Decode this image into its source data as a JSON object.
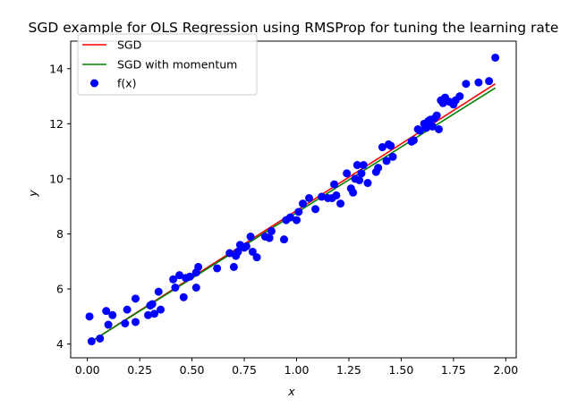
{
  "chart_data": {
    "type": "scatter",
    "title": "SGD example for OLS Regression using RMSProp for tuning the learning rate",
    "xlabel": "x",
    "ylabel": "y",
    "xlim": [
      -0.08,
      2.05
    ],
    "ylim": [
      3.5,
      15.0
    ],
    "xticks": [
      "0.00",
      "0.25",
      "0.50",
      "0.75",
      "1.00",
      "1.25",
      "1.50",
      "1.75",
      "2.00"
    ],
    "yticks": [
      "4",
      "6",
      "8",
      "10",
      "12",
      "14"
    ],
    "legend_position": "upper-left",
    "series": [
      {
        "name": "SGD",
        "kind": "line",
        "color": "#ff0000",
        "x": [
          0.02,
          1.95
        ],
        "y": [
          4.1,
          13.45
        ]
      },
      {
        "name": "SGD with momentum",
        "kind": "line",
        "color": "#008000",
        "x": [
          0.02,
          1.95
        ],
        "y": [
          4.1,
          13.3
        ]
      },
      {
        "name": "f(x)",
        "kind": "scatter",
        "color": "#0000ff",
        "x": [
          0.01,
          0.02,
          0.06,
          0.09,
          0.1,
          0.12,
          0.18,
          0.19,
          0.23,
          0.23,
          0.29,
          0.3,
          0.31,
          0.32,
          0.34,
          0.35,
          0.41,
          0.42,
          0.44,
          0.46,
          0.47,
          0.49,
          0.52,
          0.52,
          0.53,
          0.62,
          0.68,
          0.7,
          0.71,
          0.72,
          0.73,
          0.75,
          0.76,
          0.78,
          0.79,
          0.81,
          0.85,
          0.87,
          0.88,
          0.94,
          0.95,
          0.97,
          1.0,
          1.01,
          1.03,
          1.06,
          1.09,
          1.12,
          1.15,
          1.17,
          1.18,
          1.19,
          1.21,
          1.24,
          1.26,
          1.27,
          1.28,
          1.29,
          1.3,
          1.31,
          1.32,
          1.34,
          1.38,
          1.39,
          1.41,
          1.43,
          1.44,
          1.45,
          1.46,
          1.55,
          1.56,
          1.58,
          1.59,
          1.61,
          1.62,
          1.63,
          1.64,
          1.65,
          1.66,
          1.67,
          1.68,
          1.69,
          1.7,
          1.71,
          1.73,
          1.75,
          1.76,
          1.78,
          1.81,
          1.87,
          1.92,
          1.95
        ],
        "y": [
          5.0,
          4.1,
          4.2,
          5.2,
          4.7,
          5.05,
          4.75,
          5.25,
          4.8,
          5.65,
          5.05,
          5.4,
          5.45,
          5.1,
          5.9,
          5.25,
          6.35,
          6.05,
          6.5,
          5.7,
          6.4,
          6.45,
          6.6,
          6.05,
          6.8,
          6.75,
          7.3,
          6.8,
          7.2,
          7.35,
          7.6,
          7.5,
          7.55,
          7.9,
          7.35,
          7.15,
          7.9,
          7.85,
          8.1,
          7.8,
          8.5,
          8.6,
          8.5,
          8.8,
          9.1,
          9.3,
          8.9,
          9.35,
          9.3,
          9.3,
          9.8,
          9.4,
          9.1,
          10.2,
          9.65,
          9.5,
          10.0,
          10.5,
          9.95,
          10.2,
          10.5,
          9.85,
          10.25,
          10.4,
          11.15,
          10.65,
          11.25,
          11.2,
          10.8,
          11.35,
          11.4,
          11.8,
          11.75,
          12.0,
          11.85,
          12.1,
          12.15,
          11.9,
          12.2,
          12.3,
          11.8,
          12.85,
          12.75,
          12.95,
          12.8,
          12.7,
          12.85,
          13.0,
          13.45,
          13.5,
          13.55,
          14.4
        ]
      }
    ]
  }
}
